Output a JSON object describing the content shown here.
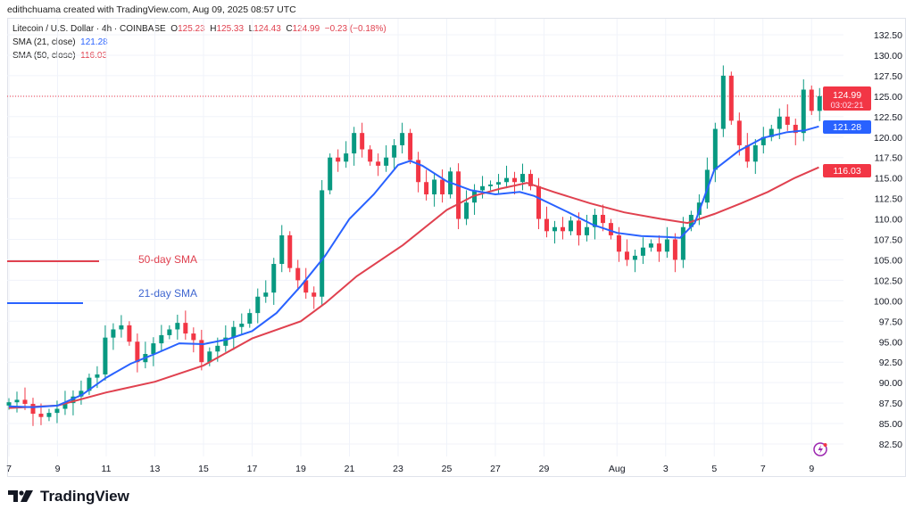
{
  "credit": "edithchuama created with TradingView.com, Aug 09, 2025 08:57 UTC",
  "legend": {
    "symbol": "Litecoin / U.S. Dollar · 4h · COINBASE",
    "o_label": "O",
    "o": "125.23",
    "h_label": "H",
    "h": "125.33",
    "l_label": "L",
    "l": "124.43",
    "c_label": "C",
    "c": "124.99",
    "change": "−0.23 (−0.18%)",
    "sma21_label": "SMA (21, close)",
    "sma21": "121.28",
    "sma50_label": "SMA (50, close)",
    "sma50": "116.03"
  },
  "annotations": {
    "sma50": "50-day SMA",
    "sma21": "21-day SMA"
  },
  "badges": {
    "price": "124.99",
    "countdown": "03:02:21",
    "sma21": "121.28",
    "sma50": "116.03"
  },
  "brand": "TradingView",
  "colors": {
    "up": "#089981",
    "down": "#f23645",
    "sma21": "#2962ff",
    "sma50": "#e0414f",
    "grid": "#f0f3fa"
  },
  "chart_data": {
    "type": "candlestick",
    "title": "Litecoin / U.S. Dollar · 4h · COINBASE",
    "ylim": [
      81,
      134
    ],
    "y_ticks": [
      "132.50",
      "130.00",
      "127.50",
      "125.00",
      "122.50",
      "120.00",
      "117.50",
      "115.00",
      "112.50",
      "110.00",
      "107.50",
      "105.00",
      "102.50",
      "100.00",
      "97.50",
      "95.00",
      "92.50",
      "90.00",
      "87.50",
      "85.00",
      "82.50"
    ],
    "x_ticks": [
      {
        "day": 0,
        "label": "7"
      },
      {
        "day": 2,
        "label": "9"
      },
      {
        "day": 4,
        "label": "11"
      },
      {
        "day": 6,
        "label": "13"
      },
      {
        "day": 8,
        "label": "15"
      },
      {
        "day": 10,
        "label": "17"
      },
      {
        "day": 12,
        "label": "19"
      },
      {
        "day": 14,
        "label": "21"
      },
      {
        "day": 16,
        "label": "23"
      },
      {
        "day": 18,
        "label": "25"
      },
      {
        "day": 20,
        "label": "27"
      },
      {
        "day": 22,
        "label": "29"
      },
      {
        "day": 25,
        "label": "Aug"
      },
      {
        "day": 27,
        "label": "3"
      },
      {
        "day": 29,
        "label": "5"
      },
      {
        "day": 31,
        "label": "7"
      },
      {
        "day": 33,
        "label": "9"
      }
    ],
    "first_open": 87.2,
    "candle_step_days": 0.33,
    "closes": [
      87.6,
      87.9,
      87.4,
      86.2,
      85.8,
      86.3,
      86.8,
      87.5,
      88.3,
      89.0,
      90.6,
      91.0,
      95.5,
      96.5,
      97.0,
      95.0,
      92.5,
      93.5,
      94.8,
      95.8,
      96.5,
      97.3,
      96.0,
      95.2,
      92.5,
      93.8,
      94.5,
      95.5,
      96.8,
      97.2,
      98.5,
      100.5,
      101.0,
      104.5,
      108.0,
      104.0,
      102.5,
      101.0,
      100.5,
      113.5,
      117.5,
      117.0,
      118.0,
      120.5,
      118.5,
      117.0,
      116.5,
      117.5,
      119.0,
      120.5,
      117.2,
      114.5,
      113.0,
      114.8,
      113.0,
      115.8,
      110.0,
      112.0,
      113.5,
      114.0,
      114.2,
      114.5,
      115.0,
      114.5,
      115.5,
      114.0,
      110.0,
      108.5,
      109.0,
      108.5,
      109.8,
      108.0,
      109.0,
      110.5,
      109.5,
      108.0,
      106.0,
      105.0,
      105.5,
      106.5,
      107.0,
      106.0,
      107.5,
      105.0,
      109.0,
      110.5,
      112.0,
      116.0,
      121.0,
      127.5,
      122.0,
      119.0,
      117.0,
      119.0,
      120.0,
      121.0,
      122.5,
      121.5,
      120.5,
      125.8,
      123.2,
      124.99
    ],
    "sma21": [
      [
        0,
        87.1
      ],
      [
        1,
        87
      ],
      [
        2,
        87.2
      ],
      [
        3,
        88.5
      ],
      [
        4,
        90.6
      ],
      [
        5,
        92.3
      ],
      [
        6,
        93.5
      ],
      [
        7,
        94.8
      ],
      [
        8,
        94.7
      ],
      [
        9,
        95.3
      ],
      [
        10,
        96.3
      ],
      [
        11,
        98.5
      ],
      [
        12,
        101.8
      ],
      [
        13,
        105.5
      ],
      [
        14,
        110
      ],
      [
        15,
        113
      ],
      [
        16,
        116.6
      ],
      [
        16.5,
        117.1
      ],
      [
        17,
        116.5
      ],
      [
        18,
        114.6
      ],
      [
        19,
        113.5
      ],
      [
        20,
        113
      ],
      [
        21,
        113.3
      ],
      [
        21.6,
        112.8
      ],
      [
        23,
        110.8
      ],
      [
        24,
        109.3
      ],
      [
        25,
        108.3
      ],
      [
        26,
        107.9
      ],
      [
        27,
        107.8
      ],
      [
        27.6,
        107.7
      ],
      [
        28.2,
        109.5
      ],
      [
        29,
        116
      ],
      [
        30,
        118.3
      ],
      [
        31,
        119.9
      ],
      [
        32,
        120.6
      ],
      [
        32.7,
        120.8
      ],
      [
        33.3,
        121.3
      ]
    ],
    "sma50": [
      [
        0,
        86.9
      ],
      [
        2,
        87.2
      ],
      [
        4,
        88.8
      ],
      [
        6,
        90.1
      ],
      [
        8,
        92.1
      ],
      [
        10,
        95.4
      ],
      [
        12,
        97.5
      ],
      [
        13,
        99.7
      ],
      [
        14.3,
        103
      ],
      [
        16.2,
        106.8
      ],
      [
        18,
        111.1
      ],
      [
        19.1,
        112.8
      ],
      [
        20.2,
        113.7
      ],
      [
        21.3,
        114.4
      ],
      [
        22.4,
        113.3
      ],
      [
        23.9,
        111.9
      ],
      [
        25.3,
        110.8
      ],
      [
        26.8,
        110
      ],
      [
        27.9,
        109.5
      ],
      [
        29,
        110.6
      ],
      [
        30.1,
        111.9
      ],
      [
        31.2,
        113.3
      ],
      [
        32.3,
        115
      ],
      [
        33.3,
        116.3
      ]
    ],
    "last_price": 124.99
  }
}
